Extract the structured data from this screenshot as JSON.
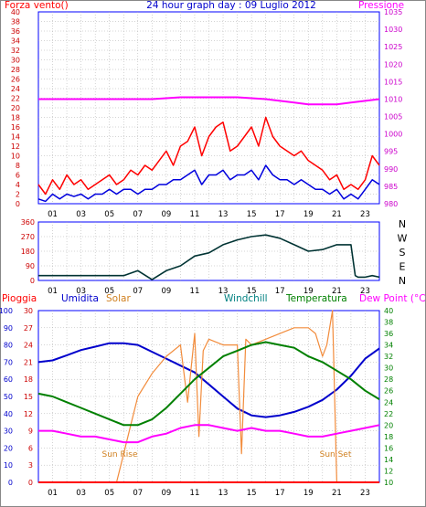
{
  "header": {
    "left": "Forza vento()",
    "title": "24 hour graph day : 09 Luglio 2012",
    "right": "Pressione"
  },
  "colors": {
    "wind": "#ff0000",
    "gust": "#ff0000",
    "speed": "#0000dd",
    "pressure": "#ff00ff",
    "direction": "#003333",
    "humidity": "#0000cc",
    "solar": "#f28c3c",
    "windchill": "#008080",
    "temperature": "#008000",
    "dewpoint": "#ff00ff",
    "rain": "#ff0000",
    "frame": "#0000ff",
    "grid": "#aaaaaa"
  },
  "compass": [
    "N",
    "W",
    "S",
    "E",
    "N"
  ],
  "bottom_header": {
    "rain": "Pioggia",
    "humidity": "Umidita",
    "solar": "Solar",
    "windchill": "Windchill",
    "temperature": "Temperatura",
    "dewpoint": "Dew Point (°C)"
  },
  "annotations": {
    "sunrise": "Sun Rise",
    "sunset": "Sun Set"
  },
  "chart_data": [
    {
      "type": "line",
      "name": "wind-pressure",
      "x_ticks": [
        "01",
        "03",
        "05",
        "07",
        "09",
        "11",
        "13",
        "15",
        "17",
        "19",
        "21",
        "23"
      ],
      "xlim": [
        0,
        24
      ],
      "y_ticks_left": [
        "0",
        "2",
        "4",
        "6",
        "8",
        "10",
        "12",
        "14",
        "16",
        "18",
        "20",
        "22",
        "24",
        "26",
        "28",
        "30",
        "32",
        "34",
        "36",
        "38",
        "40"
      ],
      "ylim_left": [
        0,
        40
      ],
      "y_ticks_right": [
        "980",
        "985",
        "990",
        "995",
        "1000",
        "1005",
        "1010",
        "1015",
        "1020",
        "1025",
        "1030",
        "1035"
      ],
      "ylim_right": [
        980,
        1035
      ],
      "series": [
        {
          "role": "gust",
          "axis": "left",
          "x": [
            0,
            0.5,
            1,
            1.5,
            2,
            2.5,
            3,
            3.5,
            4,
            4.5,
            5,
            5.5,
            6,
            6.5,
            7,
            7.5,
            8,
            8.5,
            9,
            9.5,
            10,
            10.5,
            11,
            11.5,
            12,
            12.5,
            13,
            13.5,
            14,
            14.5,
            15,
            15.5,
            16,
            16.5,
            17,
            17.5,
            18,
            18.5,
            19,
            19.5,
            20,
            20.5,
            21,
            21.5,
            22,
            22.5,
            23,
            23.5,
            24
          ],
          "values": [
            4,
            2,
            5,
            3,
            6,
            4,
            5,
            3,
            4,
            5,
            6,
            4,
            5,
            7,
            6,
            8,
            7,
            9,
            11,
            8,
            12,
            13,
            16,
            10,
            14,
            16,
            17,
            11,
            12,
            14,
            16,
            12,
            18,
            14,
            12,
            11,
            10,
            11,
            9,
            8,
            7,
            5,
            6,
            3,
            4,
            3,
            5,
            10,
            8
          ]
        },
        {
          "role": "average",
          "axis": "left",
          "x": [
            0,
            0.5,
            1,
            1.5,
            2,
            2.5,
            3,
            3.5,
            4,
            4.5,
            5,
            5.5,
            6,
            6.5,
            7,
            7.5,
            8,
            8.5,
            9,
            9.5,
            10,
            10.5,
            11,
            11.5,
            12,
            12.5,
            13,
            13.5,
            14,
            14.5,
            15,
            15.5,
            16,
            16.5,
            17,
            17.5,
            18,
            18.5,
            19,
            19.5,
            20,
            20.5,
            21,
            21.5,
            22,
            22.5,
            23,
            23.5,
            24
          ],
          "values": [
            1,
            0.5,
            2,
            1,
            2,
            1.5,
            2,
            1,
            2,
            2,
            3,
            2,
            3,
            3,
            2,
            3,
            3,
            4,
            4,
            5,
            5,
            6,
            7,
            4,
            6,
            6,
            7,
            5,
            6,
            6,
            7,
            5,
            8,
            6,
            5,
            5,
            4,
            5,
            4,
            3,
            3,
            2,
            3,
            1,
            2,
            1,
            3,
            5,
            4
          ]
        },
        {
          "role": "pressure",
          "axis": "right",
          "x": [
            0,
            2,
            4,
            6,
            8,
            10,
            12,
            14,
            16,
            18,
            19,
            20,
            21,
            22,
            23,
            24
          ],
          "values": [
            1010,
            1010,
            1010,
            1010,
            1010,
            1010.5,
            1010.5,
            1010.5,
            1010,
            1009,
            1008.5,
            1008.5,
            1008.5,
            1009,
            1009.5,
            1010
          ]
        }
      ]
    },
    {
      "type": "line",
      "name": "wind-direction",
      "x_ticks": [
        "01",
        "03",
        "05",
        "07",
        "09",
        "11",
        "13",
        "15",
        "17",
        "19",
        "21",
        "23"
      ],
      "xlim": [
        0,
        24
      ],
      "y_ticks": [
        "0",
        "90",
        "180",
        "270",
        "360"
      ],
      "ylim": [
        0,
        360
      ],
      "series": [
        {
          "role": "direction",
          "x": [
            0,
            1,
            2,
            3,
            4,
            5,
            6,
            7,
            8,
            9,
            10,
            11,
            12,
            13,
            14,
            15,
            16,
            17,
            18,
            19,
            20,
            21,
            22,
            22.3,
            22.5,
            23,
            23.5,
            24
          ],
          "values": [
            30,
            30,
            30,
            30,
            30,
            30,
            30,
            60,
            5,
            60,
            90,
            150,
            170,
            220,
            250,
            270,
            280,
            260,
            220,
            180,
            190,
            220,
            220,
            30,
            20,
            20,
            30,
            20
          ]
        }
      ]
    },
    {
      "type": "line",
      "name": "humidity-temperature",
      "x_ticks": [
        "01",
        "03",
        "05",
        "07",
        "09",
        "11",
        "13",
        "15",
        "17",
        "19",
        "21",
        "23"
      ],
      "xlim": [
        0,
        24
      ],
      "y_ticks_humidity": [
        "0",
        "10",
        "20",
        "30",
        "40",
        "50",
        "60",
        "70",
        "80",
        "90",
        "100"
      ],
      "ylim_humidity": [
        0,
        100
      ],
      "y_ticks_rain": [
        "0",
        "3",
        "6",
        "9",
        "12",
        "15",
        "18",
        "21",
        "24",
        "27",
        "30"
      ],
      "ylim_rain": [
        0,
        30
      ],
      "y_ticks_temp": [
        "10",
        "12",
        "14",
        "16",
        "18",
        "20",
        "22",
        "24",
        "26",
        "28",
        "30",
        "32",
        "34",
        "36",
        "38",
        "40"
      ],
      "ylim_temp": [
        10,
        40
      ],
      "series": [
        {
          "role": "humidity",
          "axis": "humidity",
          "x": [
            0,
            1,
            2,
            3,
            4,
            5,
            6,
            7,
            8,
            9,
            10,
            11,
            12,
            13,
            14,
            15,
            16,
            17,
            18,
            19,
            20,
            21,
            22,
            23,
            24
          ],
          "values": [
            70,
            71,
            74,
            77,
            79,
            81,
            81,
            80,
            76,
            72,
            68,
            64,
            57,
            50,
            43,
            39,
            38,
            39,
            41,
            44,
            48,
            54,
            62,
            72,
            78
          ]
        },
        {
          "role": "solar",
          "axis": "rain",
          "x": [
            0,
            5,
            5.5,
            6,
            6.5,
            7,
            8,
            9,
            10,
            10.5,
            11,
            11.3,
            11.6,
            12,
            13,
            14,
            14.3,
            14.6,
            15,
            16,
            17,
            18,
            19,
            19.5,
            20,
            20.3,
            20.7,
            21,
            22,
            24
          ],
          "values": [
            0,
            0,
            0,
            5,
            10,
            15,
            19,
            22,
            24,
            14,
            26,
            8,
            23,
            25,
            24,
            24,
            5,
            25,
            24,
            25,
            26,
            27,
            27,
            26,
            22,
            24,
            30,
            0,
            0,
            0
          ]
        },
        {
          "role": "temperature",
          "axis": "temp",
          "x": [
            0,
            1,
            2,
            3,
            4,
            5,
            6,
            7,
            8,
            9,
            10,
            11,
            12,
            13,
            14,
            15,
            16,
            17,
            18,
            19,
            20,
            21,
            22,
            23,
            24
          ],
          "values": [
            25.5,
            25,
            24,
            23,
            22,
            21,
            20,
            20,
            21,
            23,
            25.5,
            28,
            30,
            32,
            33,
            34,
            34.5,
            34,
            33.5,
            32,
            31,
            29.5,
            28,
            26,
            24.5
          ]
        },
        {
          "role": "dewpoint",
          "axis": "temp",
          "x": [
            0,
            1,
            2,
            3,
            4,
            5,
            6,
            7,
            8,
            9,
            10,
            11,
            12,
            13,
            14,
            15,
            16,
            17,
            18,
            19,
            20,
            21,
            22,
            23,
            24
          ],
          "values": [
            19,
            19,
            18.5,
            18,
            18,
            17.5,
            17,
            17,
            18,
            18.5,
            19.5,
            20,
            20,
            19.5,
            19,
            19.5,
            19,
            19,
            18.5,
            18,
            18,
            18.5,
            19,
            19.5,
            20
          ]
        },
        {
          "role": "rain",
          "axis": "rain",
          "x": [
            0,
            24
          ],
          "values": [
            0,
            0
          ]
        }
      ]
    }
  ]
}
